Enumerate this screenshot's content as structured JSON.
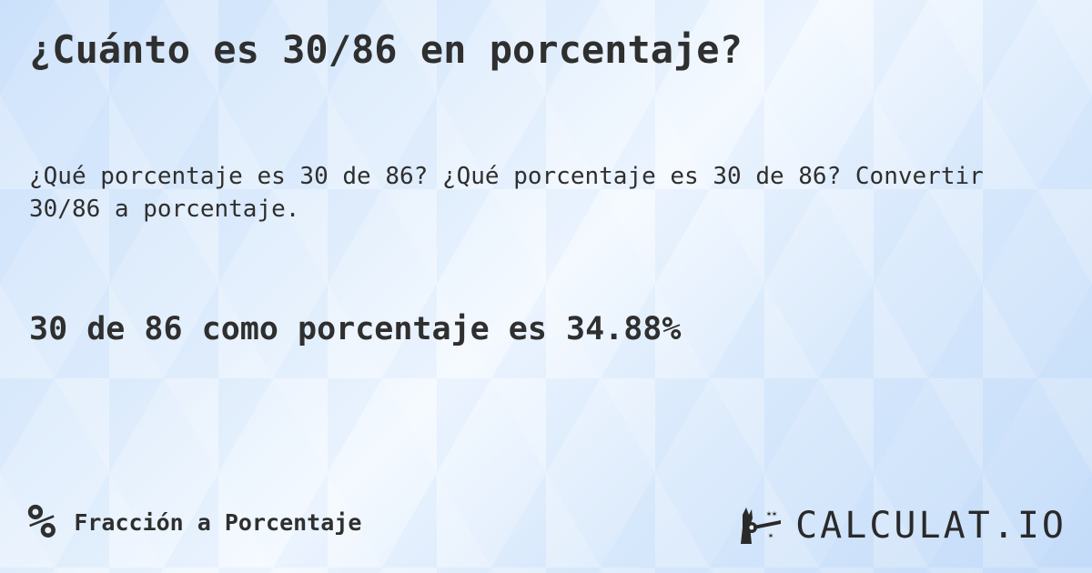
{
  "title": "¿Cuánto es 30/86 en porcentaje?",
  "subtitle": "¿Qué porcentaje es 30 de 86? ¿Qué porcentaje es 30 de 86? Convertir 30/86 a porcentaje.",
  "answer": "30 de 86 como porcentaje es 34.88%",
  "footer": {
    "icon": "percent-icon",
    "symbol": "%",
    "label": "Fracción a Porcentaje"
  },
  "logo": {
    "text": "CALCULAT.IO",
    "icon": "magic-hand-icon"
  }
}
